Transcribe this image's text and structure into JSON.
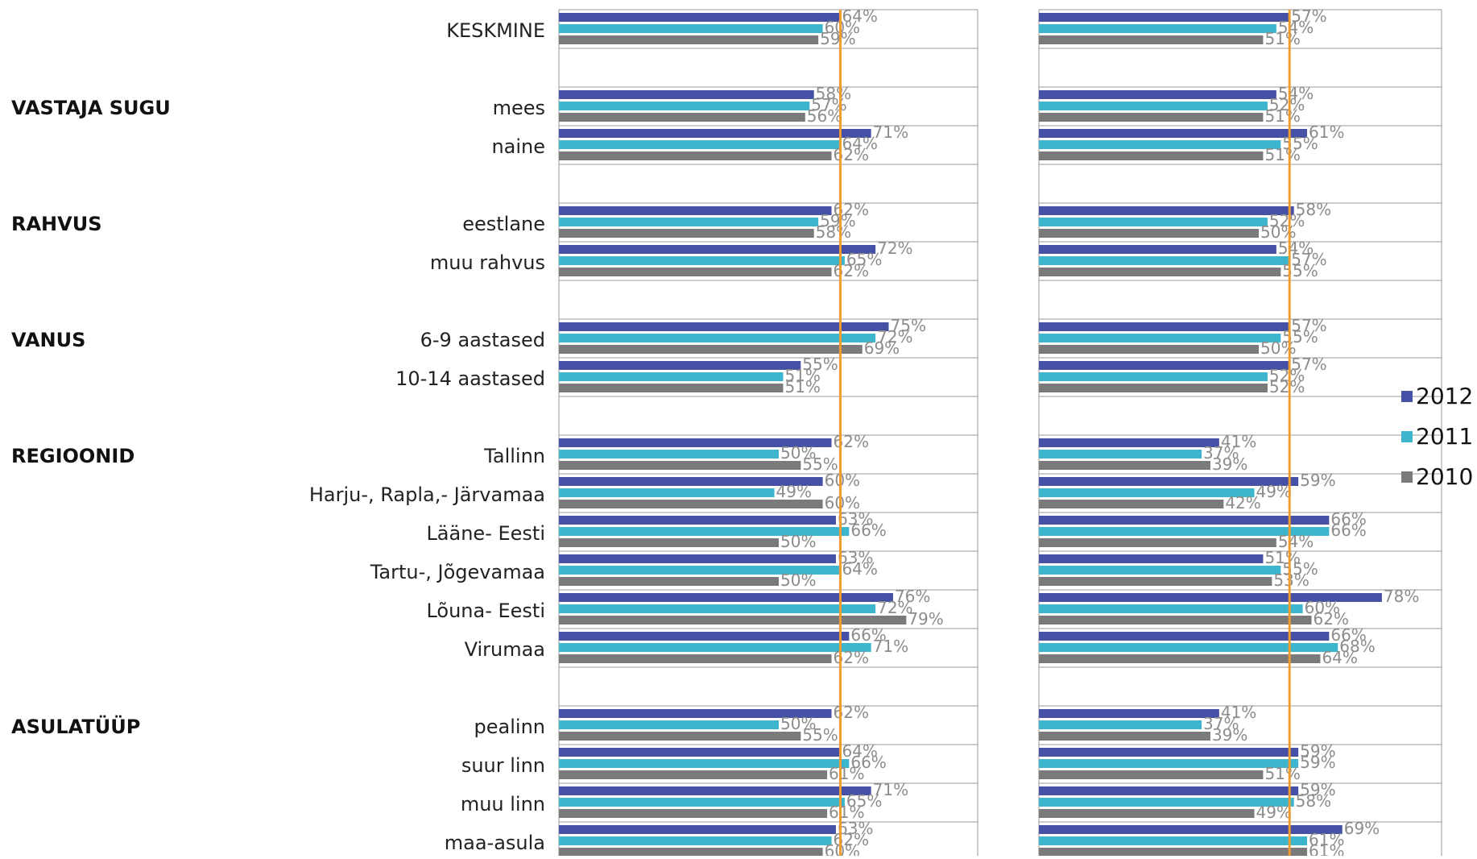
{
  "chart_data": {
    "type": "bar",
    "orientation": "horizontal",
    "value_format": "percent",
    "legend_position": "right",
    "grid": true,
    "reference_line_color": "#F29B2E",
    "colors": {
      "2012": "#4651A6",
      "2011": "#3DB5CC",
      "2010": "#7A7A7A"
    },
    "legend": [
      "2012",
      "2011",
      "2010"
    ],
    "series_names": [
      "2012",
      "2011",
      "2010"
    ],
    "groups": [
      {
        "label": "",
        "categories": [
          "KESKMINE"
        ]
      },
      {
        "label": "VASTAJA SUGU",
        "categories": [
          "mees",
          "naine"
        ]
      },
      {
        "label": "RAHVUS",
        "categories": [
          "eestlane",
          "muu rahvus"
        ]
      },
      {
        "label": "VANUS",
        "categories": [
          "6-9 aastased",
          "10-14 aastased"
        ]
      },
      {
        "label": "REGIOONID",
        "categories": [
          "Tallinn",
          "Harju-, Rapla,- Järvamaa",
          "Lääne- Eesti",
          "Tartu-, Jõgevamaa",
          "Lõuna- Eesti",
          "Virumaa"
        ]
      },
      {
        "label": "ASULATÜÜP",
        "categories": [
          "pealinn",
          "suur linn",
          "muu linn",
          "maa-asula"
        ]
      }
    ],
    "panels": [
      {
        "reference_value": 64,
        "rows": [
          [
            64,
            60,
            59
          ],
          [
            58,
            57,
            56
          ],
          [
            71,
            64,
            62
          ],
          [
            62,
            59,
            58
          ],
          [
            72,
            65,
            62
          ],
          [
            75,
            72,
            69
          ],
          [
            55,
            51,
            51
          ],
          [
            62,
            50,
            55
          ],
          [
            60,
            49,
            60
          ],
          [
            63,
            66,
            50
          ],
          [
            63,
            64,
            50
          ],
          [
            76,
            72,
            79
          ],
          [
            66,
            71,
            62
          ],
          [
            62,
            50,
            55
          ],
          [
            64,
            66,
            61
          ],
          [
            71,
            65,
            61
          ],
          [
            63,
            62,
            60
          ]
        ]
      },
      {
        "reference_value": 57,
        "rows": [
          [
            57,
            54,
            51
          ],
          [
            54,
            52,
            51
          ],
          [
            61,
            55,
            51
          ],
          [
            58,
            52,
            50
          ],
          [
            54,
            57,
            55
          ],
          [
            57,
            55,
            50
          ],
          [
            57,
            52,
            52
          ],
          [
            41,
            37,
            39
          ],
          [
            59,
            49,
            42
          ],
          [
            66,
            66,
            54
          ],
          [
            51,
            55,
            53
          ],
          [
            78,
            60,
            62
          ],
          [
            66,
            68,
            64
          ],
          [
            41,
            37,
            39
          ],
          [
            59,
            59,
            51
          ],
          [
            59,
            58,
            49
          ],
          [
            69,
            61,
            61
          ]
        ]
      }
    ]
  }
}
